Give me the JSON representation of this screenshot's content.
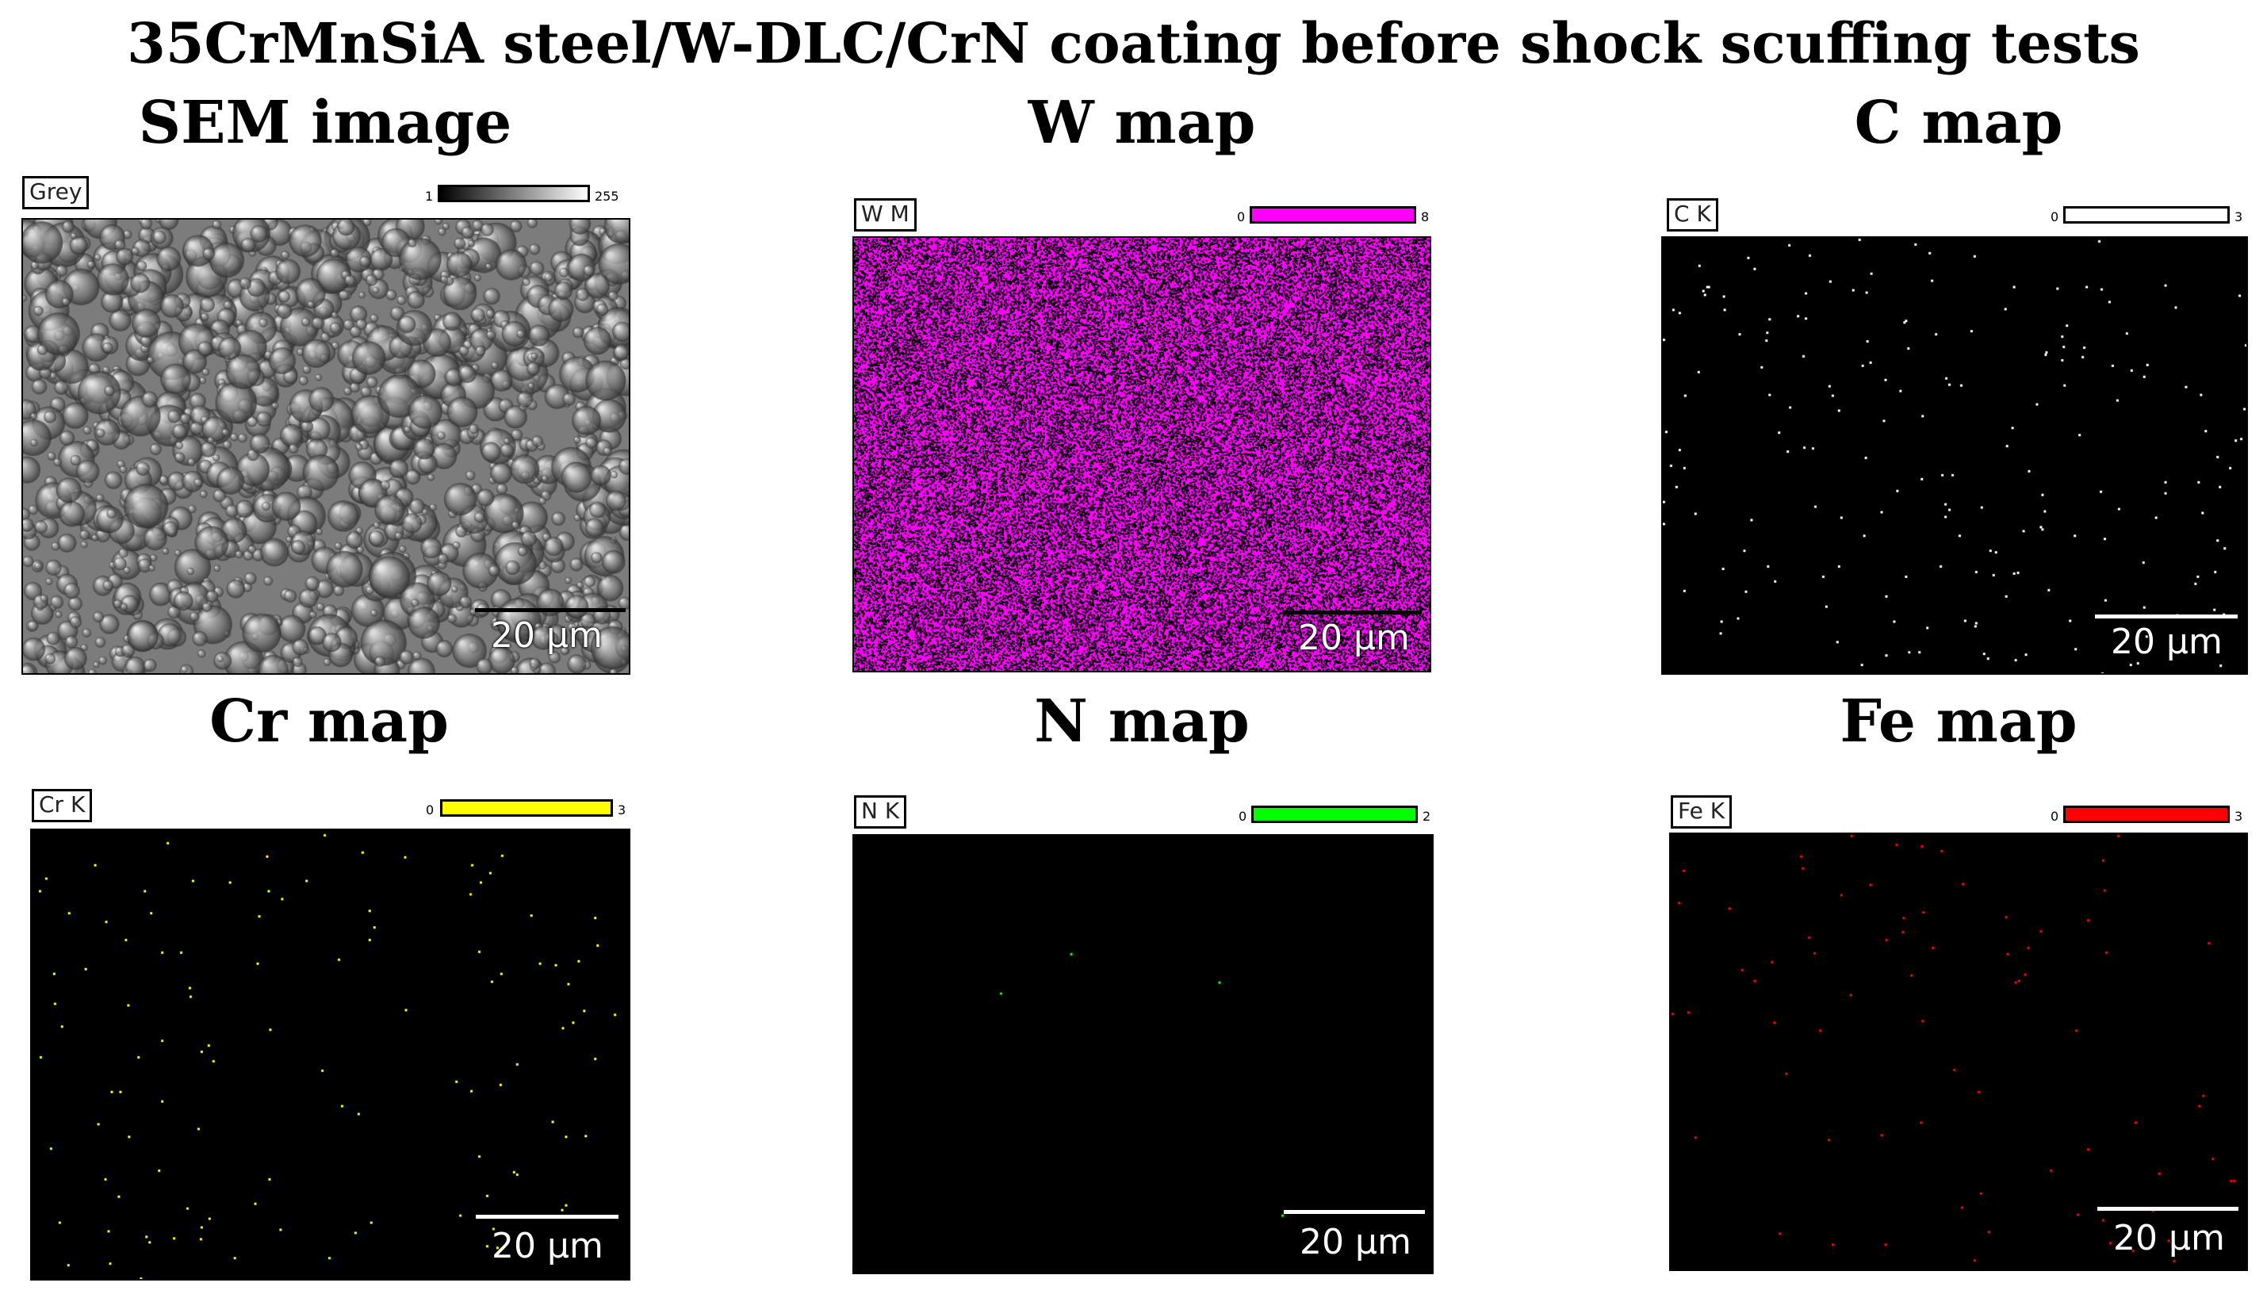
{
  "figure_title": "35CrMnSiA steel/W-DLC/CrN coating before shock scuffing tests",
  "panels": [
    {
      "id": "sem",
      "title": "SEM image",
      "label": "Grey",
      "scale_min": "1",
      "scale_max": "255",
      "scale_bar": "20 µm",
      "color": "#808080"
    },
    {
      "id": "w",
      "title": "W map",
      "label": "W M",
      "scale_min": "0",
      "scale_max": "8",
      "scale_bar": "20 µm",
      "color": "#ff00ff"
    },
    {
      "id": "c",
      "title": "C map",
      "label": "C K",
      "scale_min": "0",
      "scale_max": "3",
      "scale_bar": "20 µm",
      "color": "#ffffff"
    },
    {
      "id": "cr",
      "title": "Cr map",
      "label": "Cr K",
      "scale_min": "0",
      "scale_max": "3",
      "scale_bar": "20 µm",
      "color": "#ffff00"
    },
    {
      "id": "n",
      "title": "N map",
      "label": "N K",
      "scale_min": "0",
      "scale_max": "2",
      "scale_bar": "20 µm",
      "color": "#00ff00"
    },
    {
      "id": "fe",
      "title": "Fe map",
      "label": "Fe K",
      "scale_min": "0",
      "scale_max": "3",
      "scale_bar": "20 µm",
      "color": "#ff0000"
    }
  ]
}
